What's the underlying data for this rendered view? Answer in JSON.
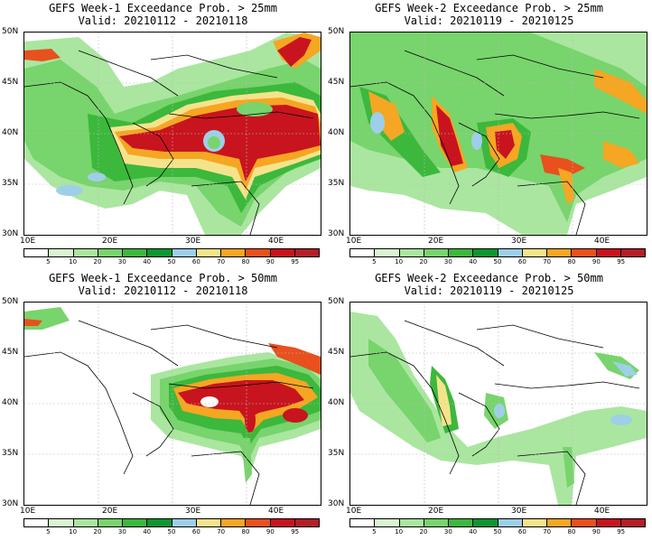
{
  "panels": [
    {
      "title": "GEFS Week-1 Exceedance Prob. > 25mm",
      "valid": "Valid: 20210112 - 20210118"
    },
    {
      "title": "GEFS Week-2 Exceedance Prob. > 25mm",
      "valid": "Valid: 20210119 - 20210125"
    },
    {
      "title": "GEFS Week-1 Exceedance Prob. > 50mm",
      "valid": "Valid: 20210112 - 20210118"
    },
    {
      "title": "GEFS Week-2 Exceedance Prob. > 50mm",
      "valid": "Valid: 20210119 - 20210125"
    }
  ],
  "lat_labels": [
    "50N",
    "45N",
    "40N",
    "35N",
    "30N"
  ],
  "lon_labels": [
    "10E",
    "20E",
    "30E",
    "40E"
  ],
  "colorbar": {
    "labels": [
      "5",
      "10",
      "20",
      "30",
      "40",
      "50",
      "60",
      "70",
      "80",
      "90",
      "95"
    ],
    "colors": [
      "#ffffff",
      "#d8f5d0",
      "#aae6a0",
      "#78d46c",
      "#3cb83c",
      "#0e9630",
      "#9ecfe8",
      "#f5e38c",
      "#f5a623",
      "#e8501e",
      "#c8141e",
      "#b41e28"
    ]
  }
}
